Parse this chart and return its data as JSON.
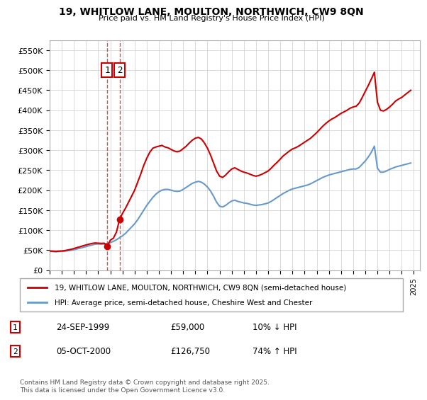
{
  "title": "19, WHITLOW LANE, MOULTON, NORTHWICH, CW9 8QN",
  "subtitle": "Price paid vs. HM Land Registry's House Price Index (HPI)",
  "legend_line1": "19, WHITLOW LANE, MOULTON, NORTHWICH, CW9 8QN (semi-detached house)",
  "legend_line2": "HPI: Average price, semi-detached house, Cheshire West and Chester",
  "footer": "Contains HM Land Registry data © Crown copyright and database right 2025.\nThis data is licensed under the Open Government Licence v3.0.",
  "transactions": [
    {
      "num": 1,
      "date": "24-SEP-1999",
      "price": "£59,000",
      "hpi": "10% ↓ HPI"
    },
    {
      "num": 2,
      "date": "05-OCT-2000",
      "price": "£126,750",
      "hpi": "74% ↑ HPI"
    }
  ],
  "sale1_year": 1999.73,
  "sale1_price": 59000,
  "sale2_year": 2000.76,
  "sale2_price": 126750,
  "ylim": [
    0,
    575000
  ],
  "yticks": [
    0,
    50000,
    100000,
    150000,
    200000,
    250000,
    300000,
    350000,
    400000,
    450000,
    500000,
    550000
  ],
  "ytick_labels": [
    "£0",
    "£50K",
    "£100K",
    "£150K",
    "£200K",
    "£250K",
    "£300K",
    "£350K",
    "£400K",
    "£450K",
    "£500K",
    "£550K"
  ],
  "red_color": "#cc0000",
  "blue_color": "#6699cc",
  "grid_color": "#cccccc",
  "background_color": "#ffffff",
  "hpi_data_years": [
    1995.0,
    1995.25,
    1995.5,
    1995.75,
    1996.0,
    1996.25,
    1996.5,
    1996.75,
    1997.0,
    1997.25,
    1997.5,
    1997.75,
    1998.0,
    1998.25,
    1998.5,
    1998.75,
    1999.0,
    1999.25,
    1999.5,
    1999.75,
    2000.0,
    2000.25,
    2000.5,
    2000.75,
    2001.0,
    2001.25,
    2001.5,
    2001.75,
    2002.0,
    2002.25,
    2002.5,
    2002.75,
    2003.0,
    2003.25,
    2003.5,
    2003.75,
    2004.0,
    2004.25,
    2004.5,
    2004.75,
    2005.0,
    2005.25,
    2005.5,
    2005.75,
    2006.0,
    2006.25,
    2006.5,
    2006.75,
    2007.0,
    2007.25,
    2007.5,
    2007.75,
    2008.0,
    2008.25,
    2008.5,
    2008.75,
    2009.0,
    2009.25,
    2009.5,
    2009.75,
    2010.0,
    2010.25,
    2010.5,
    2010.75,
    2011.0,
    2011.25,
    2011.5,
    2011.75,
    2012.0,
    2012.25,
    2012.5,
    2012.75,
    2013.0,
    2013.25,
    2013.5,
    2013.75,
    2014.0,
    2014.25,
    2014.5,
    2014.75,
    2015.0,
    2015.25,
    2015.5,
    2015.75,
    2016.0,
    2016.25,
    2016.5,
    2016.75,
    2017.0,
    2017.25,
    2017.5,
    2017.75,
    2018.0,
    2018.25,
    2018.5,
    2018.75,
    2019.0,
    2019.25,
    2019.5,
    2019.75,
    2020.0,
    2020.25,
    2020.5,
    2020.75,
    2021.0,
    2021.25,
    2021.5,
    2021.75,
    2022.0,
    2022.25,
    2022.5,
    2022.75,
    2023.0,
    2023.25,
    2023.5,
    2023.75,
    2024.0,
    2024.25,
    2024.5,
    2024.75
  ],
  "hpi_values": [
    47000,
    46500,
    46000,
    46500,
    47000,
    47500,
    48500,
    49500,
    51000,
    53000,
    55000,
    57000,
    59000,
    61000,
    63000,
    65000,
    65500,
    65000,
    65500,
    67000,
    69000,
    72000,
    76000,
    81000,
    86000,
    92000,
    100000,
    108000,
    116000,
    126000,
    138000,
    150000,
    162000,
    172000,
    182000,
    190000,
    196000,
    200000,
    202000,
    202000,
    200000,
    198000,
    197000,
    198000,
    202000,
    207000,
    212000,
    217000,
    220000,
    222000,
    220000,
    215000,
    208000,
    198000,
    185000,
    170000,
    160000,
    158000,
    162000,
    168000,
    173000,
    175000,
    172000,
    170000,
    168000,
    167000,
    165000,
    163000,
    162000,
    163000,
    164000,
    166000,
    168000,
    172000,
    177000,
    182000,
    187000,
    192000,
    196000,
    200000,
    203000,
    205000,
    207000,
    209000,
    211000,
    213000,
    216000,
    220000,
    224000,
    228000,
    232000,
    235000,
    238000,
    240000,
    242000,
    244000,
    246000,
    248000,
    250000,
    252000,
    253000,
    253000,
    257000,
    265000,
    273000,
    283000,
    295000,
    310000,
    255000,
    245000,
    245000,
    248000,
    252000,
    255000,
    258000,
    260000,
    262000,
    264000,
    266000,
    268000
  ],
  "red_data_years": [
    1995.0,
    1995.25,
    1995.5,
    1995.75,
    1996.0,
    1996.25,
    1996.5,
    1996.75,
    1997.0,
    1997.25,
    1997.5,
    1997.75,
    1998.0,
    1998.25,
    1998.5,
    1998.75,
    1999.0,
    1999.25,
    1999.5,
    1999.73,
    2000.0,
    2000.25,
    2000.5,
    2000.76,
    2001.0,
    2001.25,
    2001.5,
    2001.75,
    2002.0,
    2002.25,
    2002.5,
    2002.75,
    2003.0,
    2003.25,
    2003.5,
    2003.75,
    2004.0,
    2004.25,
    2004.5,
    2004.75,
    2005.0,
    2005.25,
    2005.5,
    2005.75,
    2006.0,
    2006.25,
    2006.5,
    2006.75,
    2007.0,
    2007.25,
    2007.5,
    2007.75,
    2008.0,
    2008.25,
    2008.5,
    2008.75,
    2009.0,
    2009.25,
    2009.5,
    2009.75,
    2010.0,
    2010.25,
    2010.5,
    2010.75,
    2011.0,
    2011.25,
    2011.5,
    2011.75,
    2012.0,
    2012.25,
    2012.5,
    2012.75,
    2013.0,
    2013.25,
    2013.5,
    2013.75,
    2014.0,
    2014.25,
    2014.5,
    2014.75,
    2015.0,
    2015.25,
    2015.5,
    2015.75,
    2016.0,
    2016.25,
    2016.5,
    2016.75,
    2017.0,
    2017.25,
    2017.5,
    2017.75,
    2018.0,
    2018.25,
    2018.5,
    2018.75,
    2019.0,
    2019.25,
    2019.5,
    2019.75,
    2020.0,
    2020.25,
    2020.5,
    2020.75,
    2021.0,
    2021.25,
    2021.5,
    2021.75,
    2022.0,
    2022.25,
    2022.5,
    2022.75,
    2023.0,
    2023.25,
    2023.5,
    2023.75,
    2024.0,
    2024.25,
    2024.5,
    2024.75
  ],
  "red_values": [
    48000,
    47500,
    47000,
    47500,
    48000,
    49000,
    50500,
    52000,
    54000,
    56500,
    58500,
    61000,
    63000,
    65000,
    67000,
    68000,
    67500,
    67000,
    67500,
    59000,
    75000,
    80000,
    95000,
    126750,
    142000,
    155000,
    170000,
    185000,
    200000,
    220000,
    240000,
    262000,
    280000,
    295000,
    305000,
    308000,
    310000,
    312000,
    308000,
    306000,
    302000,
    298000,
    296000,
    298000,
    304000,
    310000,
    318000,
    325000,
    330000,
    332000,
    328000,
    318000,
    305000,
    288000,
    268000,
    248000,
    235000,
    232000,
    238000,
    246000,
    253000,
    256000,
    252000,
    248000,
    245000,
    243000,
    240000,
    237000,
    235000,
    237000,
    240000,
    244000,
    248000,
    255000,
    263000,
    270000,
    278000,
    286000,
    292000,
    298000,
    303000,
    306000,
    310000,
    315000,
    320000,
    325000,
    330000,
    337000,
    344000,
    352000,
    360000,
    367000,
    373000,
    378000,
    382000,
    387000,
    392000,
    396000,
    400000,
    405000,
    408000,
    410000,
    418000,
    432000,
    447000,
    462000,
    478000,
    495000,
    420000,
    400000,
    398000,
    402000,
    408000,
    415000,
    423000,
    428000,
    432000,
    438000,
    444000,
    450000
  ]
}
